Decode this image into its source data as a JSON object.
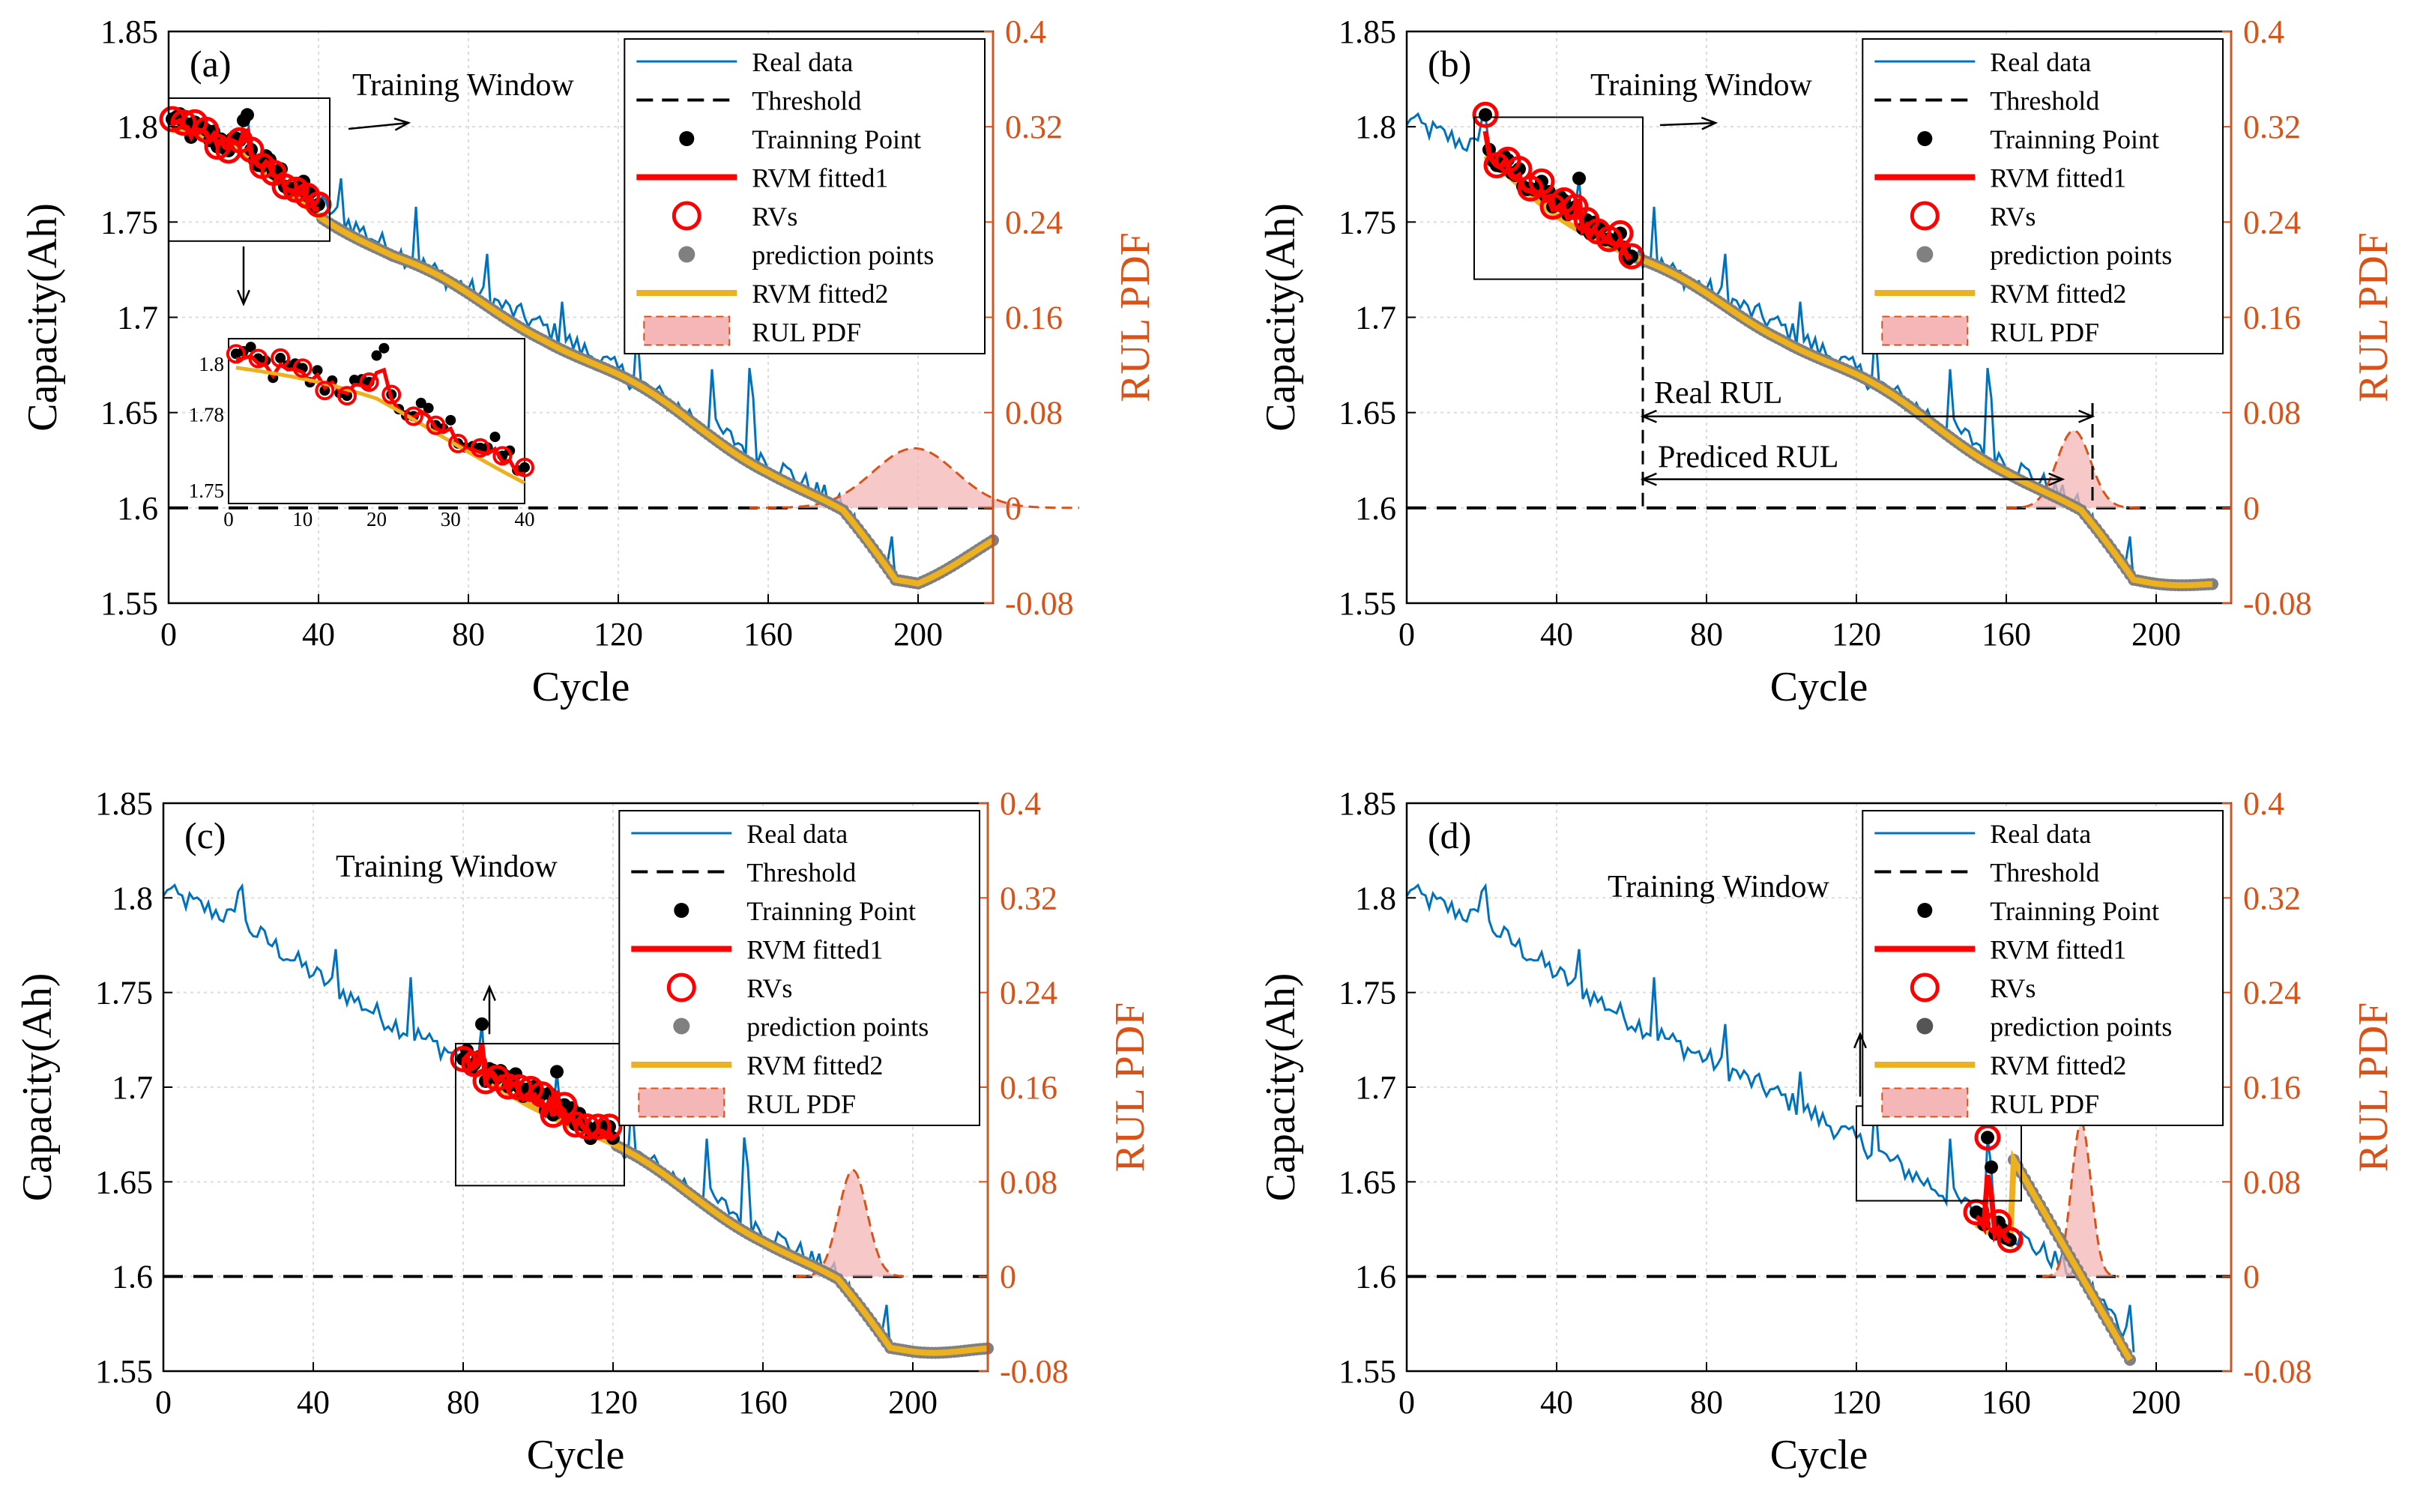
{
  "figure": {
    "threshold": 1.6,
    "legend_labels": [
      "Real data",
      "Threshold",
      "Trainning Point",
      "RVM fitted1",
      "RVs",
      "prediction points",
      "RVM fitted2",
      "RUL PDF"
    ],
    "colors": {
      "real": "#0072bd",
      "rvm1": "#ff0000",
      "rvm2": "#edb120",
      "pred": "#808080",
      "pdf_fill": "#f4b6b6",
      "pdf_line": "#d95319",
      "right_axis": "#d95319"
    }
  },
  "chart_data": [
    {
      "type": "line",
      "panel": "(a)",
      "xlabel": "Cycle",
      "ylabel": "Capacity(Ah)",
      "y2label": "RUL PDF",
      "xlim": [
        0,
        220
      ],
      "ylim": [
        1.55,
        1.85
      ],
      "y2lim": [
        -0.08,
        0.4
      ],
      "xticks": [
        0,
        40,
        80,
        120,
        160,
        200
      ],
      "yticks": [
        1.55,
        1.6,
        1.65,
        1.7,
        1.75,
        1.8,
        1.85
      ],
      "y2ticks": [
        -0.08,
        0,
        0.08,
        0.16,
        0.24,
        0.32,
        0.4
      ],
      "train_start": 1,
      "train_end": 40,
      "train_window": {
        "x": [
          0,
          43
        ],
        "y": [
          1.74,
          1.815
        ]
      },
      "annotations": [
        {
          "text": "Training Window"
        }
      ],
      "pdf": {
        "mean": 199,
        "sd": 11,
        "peak": 0.05
      },
      "rvm2_end": [
        220,
        1.583
      ],
      "inset": {
        "xlim": [
          0,
          40
        ],
        "ylim": [
          1.745,
          1.81
        ],
        "xticks": [
          0,
          10,
          20,
          30,
          40
        ],
        "yticks": [
          1.75,
          1.78,
          1.8
        ]
      }
    },
    {
      "type": "line",
      "panel": "(b)",
      "xlabel": "Cycle",
      "ylabel": "Capacity(Ah)",
      "y2label": "RUL PDF",
      "xlim": [
        0,
        220
      ],
      "ylim": [
        1.55,
        1.85
      ],
      "y2lim": [
        -0.08,
        0.4
      ],
      "xticks": [
        0,
        40,
        80,
        120,
        160,
        200
      ],
      "yticks": [
        1.55,
        1.6,
        1.65,
        1.7,
        1.75,
        1.8,
        1.85
      ],
      "y2ticks": [
        -0.08,
        0,
        0.08,
        0.16,
        0.24,
        0.32,
        0.4
      ],
      "train_start": 21,
      "train_end": 60,
      "train_window": {
        "x": [
          18,
          63
        ],
        "y": [
          1.72,
          1.805
        ]
      },
      "annotations": [
        {
          "text": "Training Window"
        },
        {
          "text": "Real RUL"
        },
        {
          "text": "Prediced RUL"
        }
      ],
      "rul_arrows": {
        "start": 63,
        "real_end": 183,
        "pred_end": 175
      },
      "pdf": {
        "mean": 178,
        "sd": 4.5,
        "peak": 0.065
      },
      "rvm2_end": [
        215,
        1.56
      ]
    },
    {
      "type": "line",
      "panel": "(c)",
      "xlabel": "Cycle",
      "ylabel": "Capacity(Ah)",
      "y2label": "RUL PDF",
      "xlim": [
        0,
        220
      ],
      "ylim": [
        1.55,
        1.85
      ],
      "y2lim": [
        -0.08,
        0.4
      ],
      "xticks": [
        0,
        40,
        80,
        120,
        160,
        200
      ],
      "yticks": [
        1.55,
        1.6,
        1.65,
        1.7,
        1.75,
        1.8,
        1.85
      ],
      "y2ticks": [
        -0.08,
        0,
        0.08,
        0.16,
        0.24,
        0.32,
        0.4
      ],
      "train_start": 80,
      "train_end": 120,
      "train_window": {
        "x": [
          78,
          123
        ],
        "y": [
          1.648,
          1.723
        ]
      },
      "annotations": [
        {
          "text": "Training Window"
        }
      ],
      "pdf": {
        "mean": 184,
        "sd": 3.8,
        "peak": 0.09
      },
      "rvm2_end": [
        220,
        1.562
      ]
    },
    {
      "type": "line",
      "panel": "(d)",
      "xlabel": "Cycle",
      "ylabel": "Capacity(Ah)",
      "y2label": "RUL PDF",
      "xlim": [
        0,
        220
      ],
      "ylim": [
        1.55,
        1.85
      ],
      "y2lim": [
        -0.08,
        0.4
      ],
      "xticks": [
        0,
        40,
        80,
        120,
        160,
        200
      ],
      "yticks": [
        1.55,
        1.6,
        1.65,
        1.7,
        1.75,
        1.8,
        1.85
      ],
      "y2ticks": [
        -0.08,
        0,
        0.08,
        0.16,
        0.24,
        0.32,
        0.4
      ],
      "train_start": 152,
      "train_end": 161,
      "train_window": {
        "x": [
          120,
          164
        ],
        "y": [
          1.64,
          1.69
        ]
      },
      "annotations": [
        {
          "text": "Training Window"
        }
      ],
      "pdf": {
        "mean": 180,
        "sd": 2.6,
        "peak": 0.13
      },
      "rvm2_end": [
        193,
        1.556
      ]
    }
  ]
}
